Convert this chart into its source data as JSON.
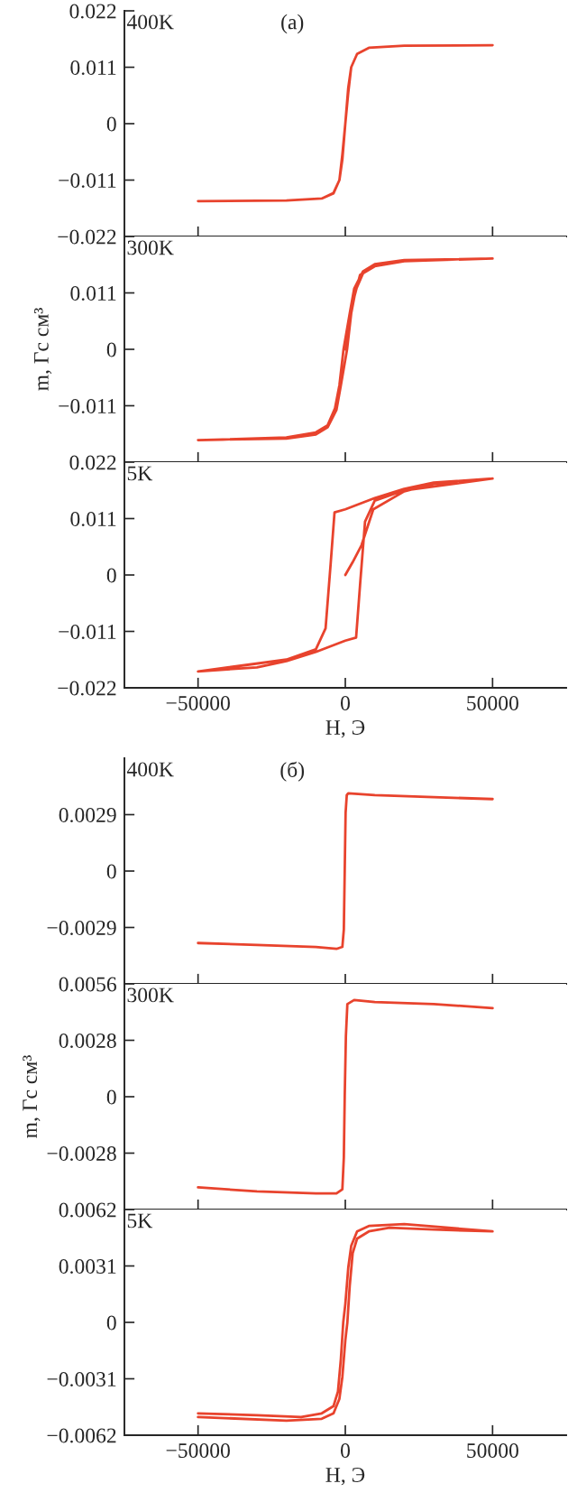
{
  "chart_data": [
    {
      "type": "line",
      "annotations": [
        "400K",
        "(a)"
      ],
      "xlim": [
        -75000,
        75000
      ],
      "xticks": [
        -50000,
        0,
        50000
      ],
      "ylim": [
        -0.022,
        0.022
      ],
      "yticks": [
        0.022,
        0.011,
        0,
        -0.011,
        -0.022
      ],
      "tick_labels": "y",
      "series": [
        {
          "color": "#e8432d",
          "x": [
            0,
            1000,
            2000,
            4000,
            8000,
            20000,
            50000,
            20000,
            8000,
            4000,
            2000,
            1000,
            0,
            -1000,
            -2000,
            -4000,
            -8000,
            -20000,
            -50000,
            -20000,
            -8000,
            -4000,
            -2000,
            -1000,
            0,
            1000,
            2000,
            4000,
            8000,
            20000,
            50000
          ],
          "values": [
            0.0,
            0.007,
            0.011,
            0.0136,
            0.0148,
            0.0152,
            0.0153,
            0.0152,
            0.0148,
            0.0136,
            0.011,
            0.006,
            0.0,
            -0.007,
            -0.011,
            -0.0136,
            -0.0146,
            -0.015,
            -0.0151,
            -0.015,
            -0.0146,
            -0.0135,
            -0.011,
            -0.006,
            0.0,
            0.007,
            0.011,
            0.0136,
            0.0148,
            0.0152,
            0.0153
          ]
        }
      ]
    },
    {
      "type": "line",
      "annotations": [
        "300K"
      ],
      "ylabel": "m, Гс см³",
      "xlim": [
        -75000,
        75000
      ],
      "xticks": [
        -50000,
        0,
        50000
      ],
      "ylim": [
        -0.022,
        0.022
      ],
      "yticks": [
        {
          "value": 0.022,
          "label": null
        },
        0.011,
        0,
        -0.011,
        {
          "value": -0.022,
          "label": null
        }
      ],
      "tick_labels": "y",
      "series": [
        {
          "color": "#e8432d",
          "x": [
            0,
            2500,
            5000,
            10000,
            20000,
            50000,
            20000,
            10000,
            6000,
            3000,
            1500,
            -600,
            -2000,
            -3500,
            -6000,
            -10000,
            -20000,
            -50000,
            -20000,
            -10000,
            -6000,
            -3000,
            -1500,
            600,
            2000,
            3500,
            6000,
            10000,
            20000,
            50000
          ],
          "values": [
            0.0,
            0.009,
            0.0145,
            0.0164,
            0.0173,
            0.0177,
            0.0174,
            0.0166,
            0.0152,
            0.0118,
            0.007,
            0.0,
            -0.007,
            -0.0115,
            -0.0148,
            -0.0162,
            -0.0172,
            -0.0177,
            -0.0174,
            -0.0166,
            -0.0152,
            -0.0118,
            -0.007,
            0.0,
            0.007,
            0.0115,
            0.0148,
            0.0162,
            0.0172,
            0.0177
          ]
        }
      ]
    },
    {
      "type": "line",
      "annotations": [
        "5K"
      ],
      "xlabel": "H, Э",
      "xlim": [
        -75000,
        75000
      ],
      "xticks": [
        -50000,
        0,
        50000
      ],
      "ylim": [
        -0.022,
        0.022
      ],
      "yticks": [
        0.022,
        0.011,
        0,
        -0.011,
        -0.022
      ],
      "series": [
        {
          "color": "#e8432d",
          "x": [
            0,
            2500,
            5500,
            9500,
            20000,
            30000,
            50000,
            30000,
            20000,
            10000,
            0,
            -3660,
            -5000,
            -6700,
            -10000,
            -20000,
            -50000,
            -30000,
            -20000,
            -10000,
            0,
            3660,
            5000,
            6700,
            10000,
            20000,
            50000
          ],
          "values": [
            0.0,
            0.0025,
            0.0058,
            0.0128,
            0.0163,
            0.0178,
            0.0188,
            0.018,
            0.0168,
            0.015,
            0.0128,
            0.0122,
            0.002,
            -0.0104,
            -0.0145,
            -0.0165,
            -0.0188,
            -0.018,
            -0.0168,
            -0.015,
            -0.0128,
            -0.0122,
            -0.002,
            0.0104,
            0.0145,
            0.0165,
            0.0188
          ]
        }
      ]
    },
    {
      "type": "line",
      "annotations": [
        "400K",
        "(б)"
      ],
      "xlim": [
        -75000,
        75000
      ],
      "xticks": [
        -50000,
        0,
        50000
      ],
      "ylim": [
        -0.0058,
        0.0058
      ],
      "yticks": [
        0.0029,
        0,
        -0.0029
      ],
      "tick_labels": "y",
      "series": [
        {
          "color": "#e8432d",
          "x": [
            -50000,
            -30000,
            -10000,
            -3000,
            -1000,
            -500,
            -200,
            100,
            500,
            1000,
            10000,
            30000,
            50000
          ],
          "values": [
            -0.0037,
            -0.0038,
            -0.0039,
            -0.004,
            -0.0039,
            -0.003,
            0.0,
            0.003,
            0.0039,
            0.004,
            0.0039,
            0.0038,
            0.0037
          ]
        }
      ]
    },
    {
      "type": "line",
      "annotations": [
        "300K"
      ],
      "ylabel": "m, Гс см³",
      "xlim": [
        -75000,
        75000
      ],
      "xticks": [
        -50000,
        0,
        50000
      ],
      "ylim": [
        -0.0056,
        0.0056
      ],
      "yticks": [
        0.0056,
        0.0028,
        0,
        -0.0028,
        {
          "value": -0.0056,
          "label": null
        }
      ],
      "tick_labels": "y",
      "series": [
        {
          "color": "#e8432d",
          "x": [
            -50000,
            -30000,
            -10000,
            -3000,
            -1000,
            -500,
            -200,
            200,
            700,
            3000,
            10000,
            30000,
            50000
          ],
          "values": [
            -0.0045,
            -0.0047,
            -0.0048,
            -0.0048,
            -0.0046,
            -0.003,
            0.0,
            0.003,
            0.0046,
            0.0048,
            0.0047,
            0.0046,
            0.0044
          ]
        }
      ]
    },
    {
      "type": "line",
      "annotations": [
        "5K"
      ],
      "xlabel": "H, Э",
      "xlim": [
        -75000,
        75000
      ],
      "xticks": [
        -50000,
        0,
        50000
      ],
      "ylim": [
        -0.0062,
        0.0062
      ],
      "yticks": [
        0.0062,
        0.0031,
        0,
        -0.0031,
        -0.0062
      ],
      "series": [
        {
          "color": "#e8432d",
          "x": [
            -50000,
            -20000,
            -8000,
            -4000,
            -2000,
            -1000,
            0,
            700,
            1500,
            2500,
            4000,
            8000,
            15000,
            30000,
            50000,
            20000,
            8000,
            4000,
            2000,
            1000,
            0,
            -700,
            -1500,
            -2500,
            -4000,
            -8000,
            -15000,
            -30000,
            -50000
          ],
          "values": [
            -0.0052,
            -0.0054,
            -0.0053,
            -0.005,
            -0.0042,
            -0.003,
            -0.001,
            0.0,
            0.002,
            0.0038,
            0.0046,
            0.005,
            0.0052,
            0.0051,
            0.005,
            0.0054,
            0.0053,
            0.005,
            0.0042,
            0.003,
            0.001,
            0.0,
            -0.002,
            -0.0038,
            -0.0046,
            -0.005,
            -0.0052,
            -0.0051,
            -0.005
          ]
        }
      ]
    }
  ]
}
